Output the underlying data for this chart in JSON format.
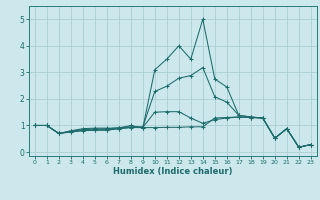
{
  "xlabel": "Humidex (Indice chaleur)",
  "background_color": "#cce8ec",
  "grid_color": "#aacfd4",
  "line_color": "#1e6b6b",
  "spine_color": "#2a7a7a",
  "xlim": [
    -0.5,
    23.5
  ],
  "ylim": [
    -0.15,
    5.5
  ],
  "xticks": [
    0,
    1,
    2,
    3,
    4,
    5,
    6,
    7,
    8,
    9,
    10,
    11,
    12,
    13,
    14,
    15,
    16,
    17,
    18,
    19,
    20,
    21,
    22,
    23
  ],
  "yticks": [
    0,
    1,
    2,
    3,
    4,
    5
  ],
  "series": [
    [
      1.0,
      1.0,
      0.7,
      0.75,
      0.8,
      0.82,
      0.82,
      0.88,
      0.92,
      0.92,
      0.92,
      0.93,
      0.93,
      0.95,
      0.95,
      1.28,
      1.3,
      1.32,
      1.3,
      1.28,
      0.52,
      0.88,
      0.18,
      0.28
    ],
    [
      1.0,
      1.0,
      0.7,
      0.77,
      0.82,
      0.84,
      0.84,
      0.88,
      0.93,
      0.93,
      1.5,
      1.52,
      1.52,
      1.28,
      1.08,
      1.22,
      1.28,
      1.32,
      1.3,
      1.28,
      0.52,
      0.88,
      0.18,
      0.28
    ],
    [
      1.0,
      1.0,
      0.7,
      0.78,
      0.84,
      0.87,
      0.87,
      0.92,
      0.95,
      0.95,
      2.28,
      2.48,
      2.78,
      2.88,
      3.18,
      2.08,
      1.88,
      1.38,
      1.32,
      1.28,
      0.52,
      0.88,
      0.18,
      0.28
    ],
    [
      1.0,
      1.0,
      0.7,
      0.8,
      0.88,
      0.9,
      0.9,
      0.9,
      1.0,
      0.9,
      3.1,
      3.5,
      4.0,
      3.5,
      5.0,
      2.75,
      2.45,
      1.38,
      1.32,
      1.28,
      0.52,
      0.88,
      0.18,
      0.28
    ]
  ]
}
